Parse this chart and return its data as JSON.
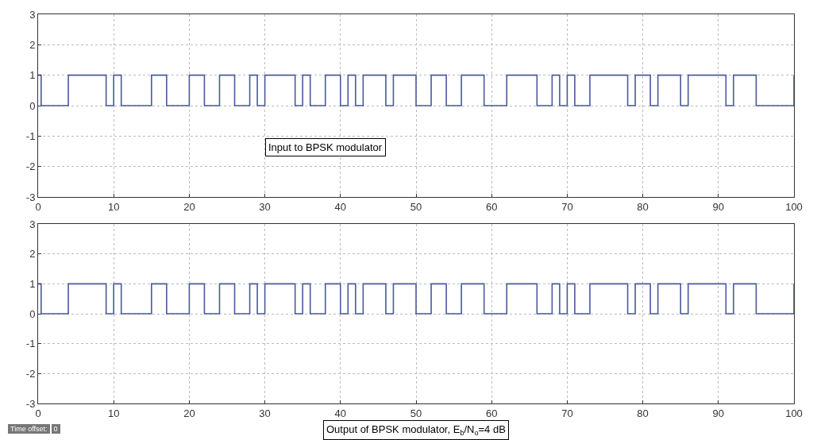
{
  "chart_data": [
    {
      "type": "step",
      "x": [
        0,
        0.4,
        4,
        9,
        10,
        11,
        15,
        17,
        20,
        22,
        24,
        26,
        28,
        29,
        30,
        34,
        35,
        36,
        38,
        40,
        41,
        42,
        43,
        46,
        47,
        50,
        52,
        54,
        56,
        59,
        62,
        66,
        68,
        69,
        70,
        71,
        73,
        78,
        79,
        81,
        82,
        85,
        86,
        91,
        92,
        95,
        100
      ],
      "series": [
        {
          "color": "#4a5a9c",
          "values": [
            1,
            0,
            1,
            0,
            1,
            0,
            1,
            0,
            1,
            0,
            1,
            0,
            1,
            0,
            1,
            0,
            1,
            0,
            1,
            0,
            1,
            0,
            1,
            0,
            1,
            0,
            1,
            0,
            1,
            0,
            1,
            0,
            1,
            0,
            1,
            0,
            1,
            0,
            1,
            0,
            1,
            0,
            1,
            0,
            1,
            0,
            1
          ]
        }
      ],
      "xlim": [
        0,
        100
      ],
      "xticks": [
        0,
        10,
        20,
        30,
        40,
        50,
        60,
        70,
        80,
        90,
        100
      ],
      "ylim": [
        -3,
        3
      ],
      "yticks": [
        -3,
        -2,
        -1,
        0,
        1,
        2,
        3
      ],
      "grid": true,
      "line_style": "solid",
      "annotations": [
        "Input to BPSK modulator"
      ]
    },
    {
      "type": "step",
      "x": [
        0,
        0.4,
        4,
        9,
        10,
        11,
        15,
        17,
        20,
        22,
        24,
        26,
        28,
        29,
        30,
        34,
        35,
        36,
        38,
        40,
        41,
        42,
        43,
        46,
        47,
        50,
        52,
        54,
        56,
        59,
        62,
        66,
        68,
        69,
        70,
        71,
        73,
        78,
        79,
        81,
        82,
        85,
        86,
        91,
        92,
        95,
        100
      ],
      "series": [
        {
          "color": "#4a5a9c",
          "values": [
            1,
            0,
            1,
            0,
            1,
            0,
            1,
            0,
            1,
            0,
            1,
            0,
            1,
            0,
            1,
            0,
            1,
            0,
            1,
            0,
            1,
            0,
            1,
            0,
            1,
            0,
            1,
            0,
            1,
            0,
            1,
            0,
            1,
            0,
            1,
            0,
            1,
            0,
            1,
            0,
            1,
            0,
            1,
            0,
            1,
            0,
            1
          ]
        }
      ],
      "xlim": [
        0,
        100
      ],
      "xticks": [
        0,
        10,
        20,
        30,
        40,
        50,
        60,
        70,
        80,
        90,
        100
      ],
      "ylim": [
        -3,
        3
      ],
      "yticks": [
        -3,
        -2,
        -1,
        0,
        1,
        2,
        3
      ],
      "grid": true,
      "line_style": "solid",
      "annotations": [
        "Output of BPSK modulator, E$_{b}$/N$_{o}$=4 dB",
        "Time offset:",
        "0"
      ]
    }
  ]
}
